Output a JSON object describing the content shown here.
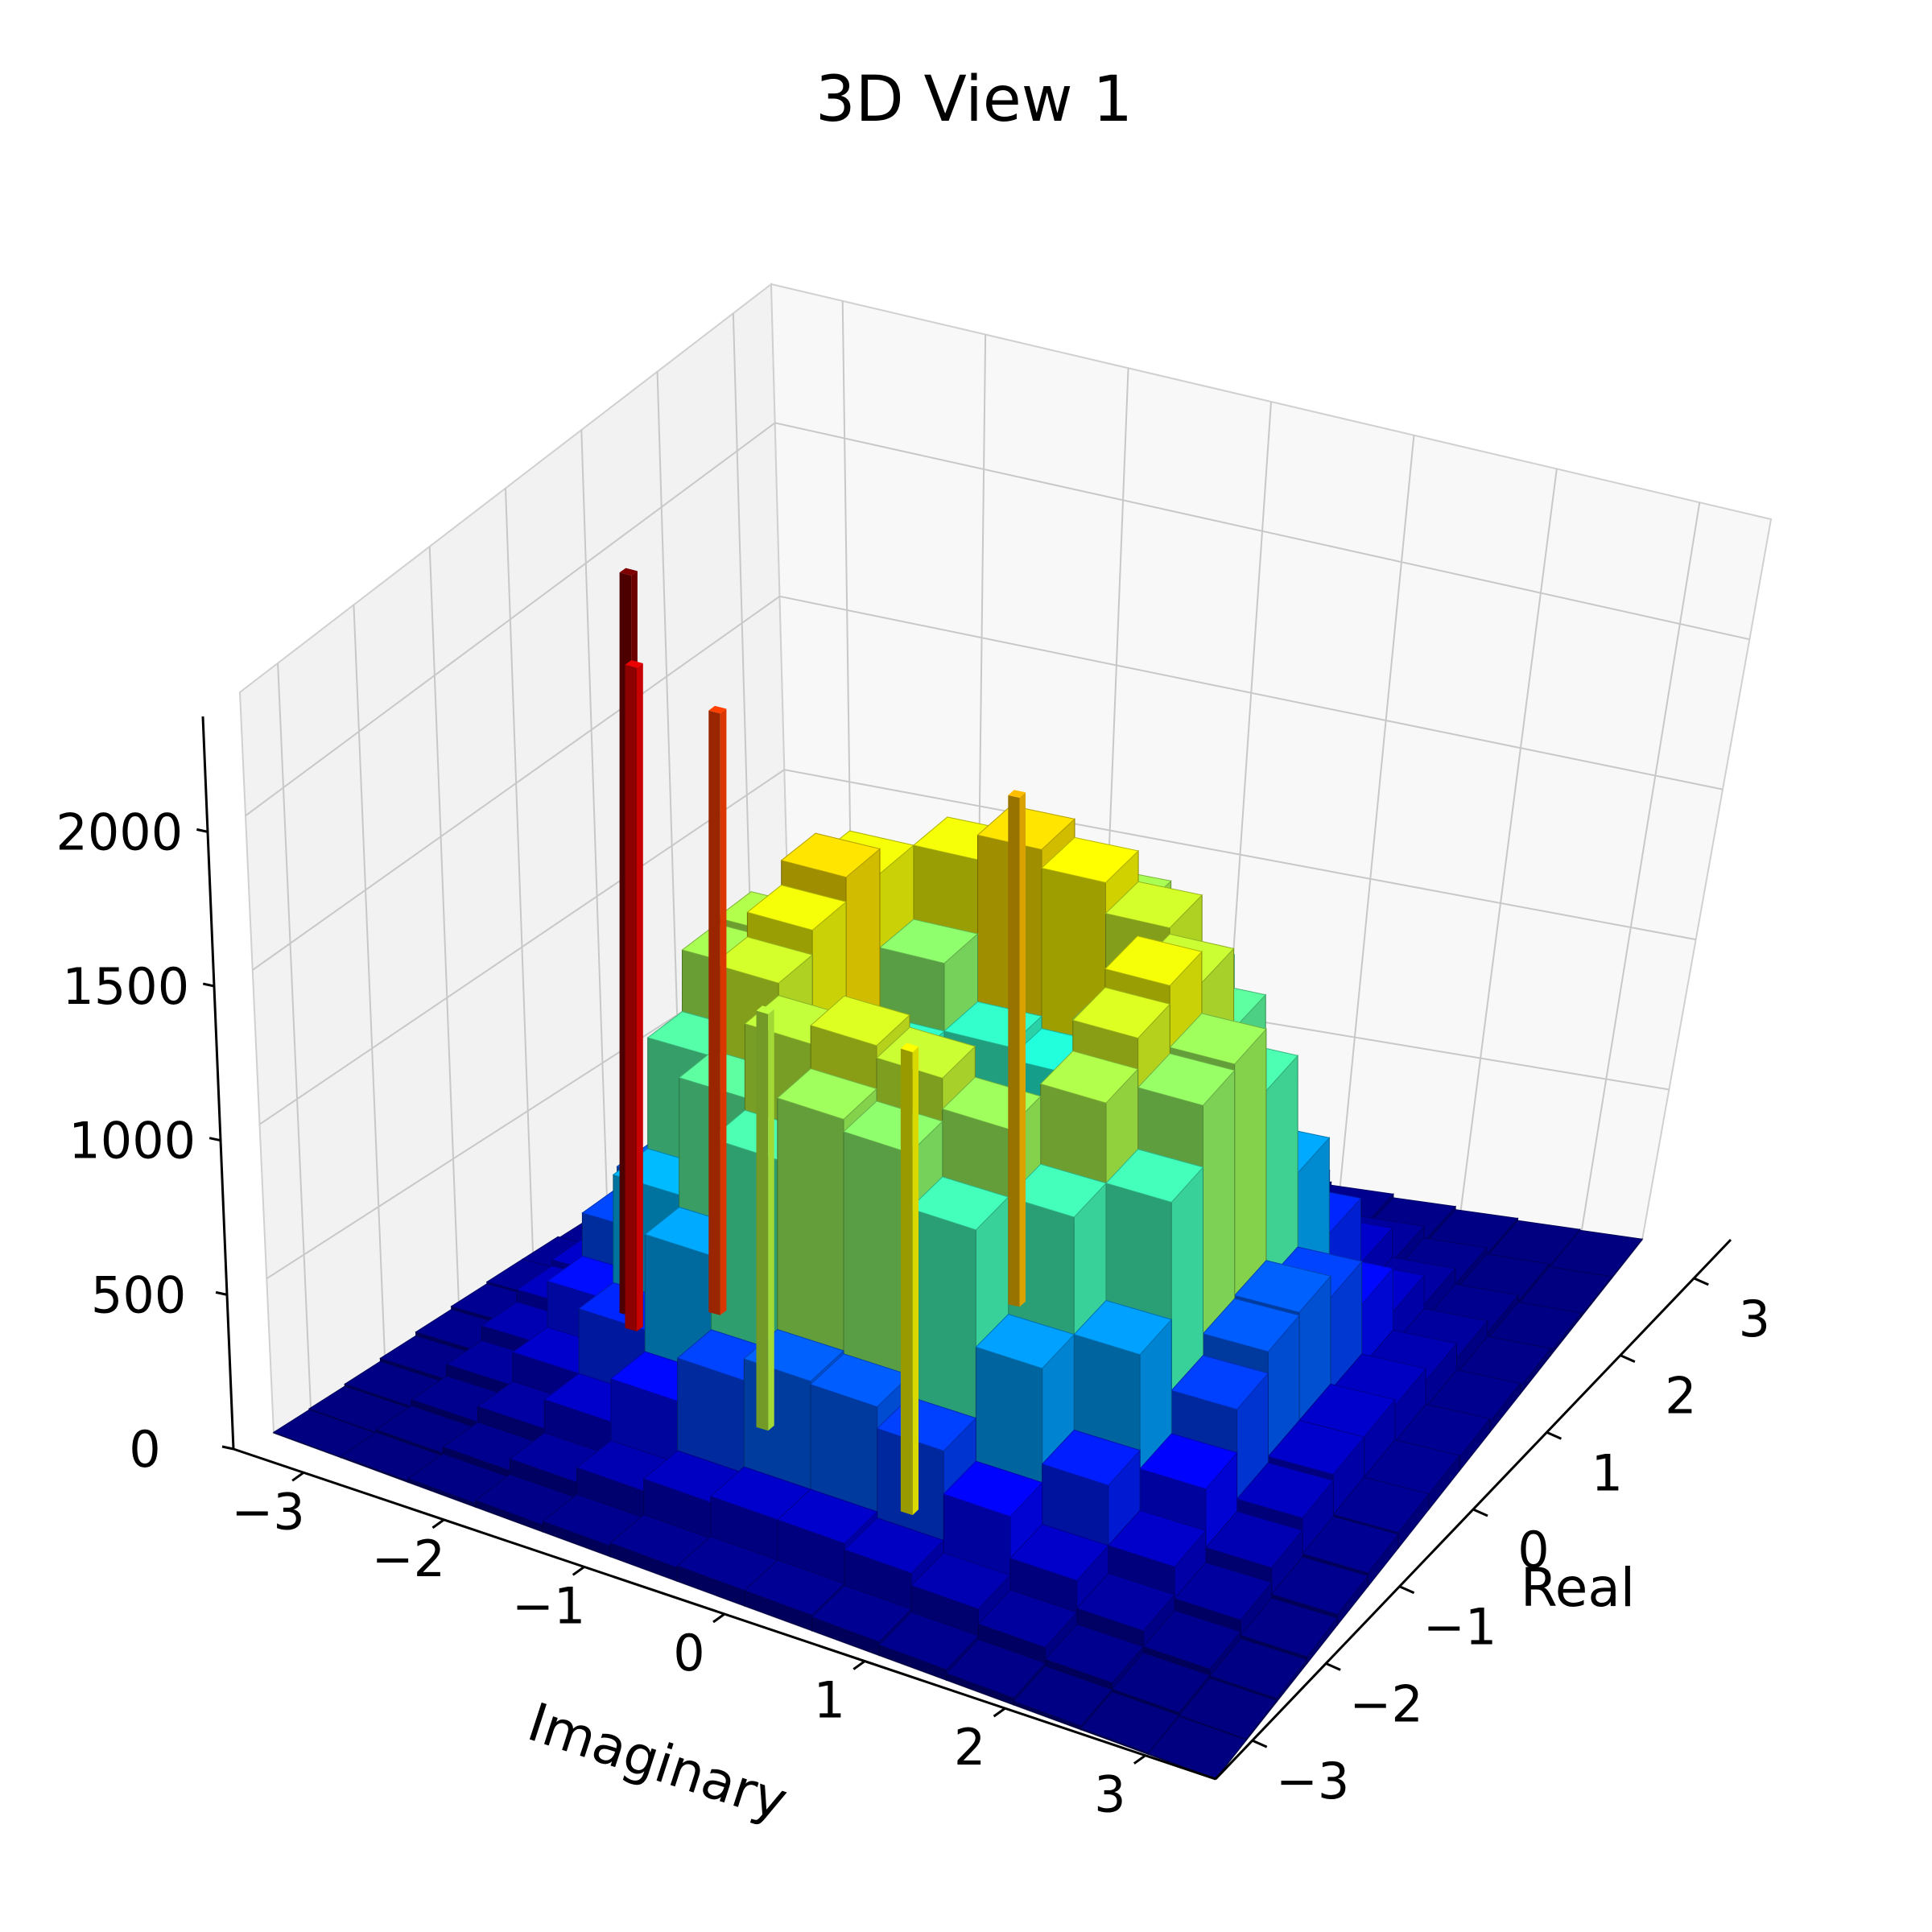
{
  "chart_data": {
    "type": "3d-bar-histogram",
    "title": "3D View 1",
    "xlabel": "Imaginary",
    "ylabel": "Real",
    "zlabel": "",
    "x_range": [
      -3.5,
      3.5
    ],
    "y_range": [
      -3.5,
      3.5
    ],
    "z_range": [
      0,
      2400
    ],
    "x_ticks": [
      -3,
      -2,
      -1,
      0,
      1,
      2,
      3
    ],
    "x_tick_labels": [
      "−3",
      "−2",
      "−1",
      "0",
      "1",
      "2",
      "3"
    ],
    "y_ticks": [
      -3,
      -2,
      -1,
      0,
      1,
      2,
      3
    ],
    "y_tick_labels": [
      "−3",
      "−2",
      "−1",
      "0",
      "1",
      "2",
      "3"
    ],
    "z_ticks": [
      0,
      500,
      1000,
      1500,
      2000
    ],
    "z_tick_labels": [
      "0",
      "500",
      "1000",
      "1500",
      "2000"
    ],
    "grid": true,
    "colormap": [
      "#00007f",
      "#0000ff",
      "#007fff",
      "#00ffff",
      "#7fff7f",
      "#ffff00",
      "#ff7f00",
      "#ff0000",
      "#7f0000"
    ],
    "bin_edges": [
      -3.5,
      -3.0,
      -2.5,
      -2.0,
      -1.5,
      -1.0,
      -0.5,
      0.0,
      0.5,
      1.0,
      1.5,
      2.0,
      2.5,
      3.0,
      3.5
    ],
    "peaks_approx": [
      {
        "imaginary": 0.0,
        "real": -1.5,
        "count": 1800
      },
      {
        "imaginary": -1.5,
        "real": 0.0,
        "count": 1400
      },
      {
        "imaginary": 1.5,
        "real": 0.0,
        "count": 1300
      },
      {
        "imaginary": 0.0,
        "real": 1.5,
        "count": 1450
      }
    ],
    "counts": [
      [
        2,
        5,
        12,
        22,
        34,
        44,
        50,
        50,
        44,
        34,
        22,
        12,
        5,
        2
      ],
      [
        5,
        14,
        34,
        72,
        120,
        160,
        180,
        180,
        160,
        120,
        72,
        34,
        14,
        5
      ],
      [
        12,
        34,
        85,
        180,
        330,
        470,
        540,
        540,
        470,
        330,
        180,
        85,
        34,
        12
      ],
      [
        22,
        72,
        180,
        400,
        760,
        1120,
        1320,
        1300,
        1100,
        740,
        390,
        180,
        72,
        22
      ],
      [
        34,
        120,
        330,
        760,
        1200,
        1480,
        1560,
        1500,
        1400,
        1120,
        700,
        320,
        120,
        34
      ],
      [
        44,
        160,
        470,
        1120,
        1480,
        1240,
        1020,
        980,
        1160,
        1380,
        1080,
        460,
        160,
        44
      ],
      [
        50,
        180,
        540,
        1320,
        1560,
        1020,
        380,
        360,
        940,
        1480,
        1280,
        530,
        180,
        50
      ],
      [
        50,
        180,
        540,
        1300,
        1480,
        980,
        360,
        340,
        920,
        1420,
        1260,
        520,
        180,
        50
      ],
      [
        44,
        160,
        470,
        1100,
        1400,
        1140,
        920,
        900,
        1080,
        1320,
        1060,
        450,
        160,
        44
      ],
      [
        34,
        120,
        330,
        740,
        1120,
        1360,
        1420,
        1380,
        1280,
        1060,
        680,
        310,
        120,
        34
      ],
      [
        22,
        72,
        180,
        390,
        700,
        1080,
        1280,
        1240,
        1060,
        680,
        370,
        175,
        72,
        22
      ],
      [
        12,
        34,
        85,
        180,
        320,
        460,
        530,
        520,
        450,
        310,
        175,
        85,
        34,
        12
      ],
      [
        5,
        14,
        34,
        72,
        120,
        160,
        180,
        180,
        160,
        120,
        72,
        34,
        14,
        5
      ],
      [
        2,
        5,
        12,
        22,
        34,
        44,
        50,
        50,
        44,
        34,
        22,
        12,
        5,
        2
      ]
    ],
    "spikes": [
      {
        "imaginary": 0.15,
        "real": -2.6,
        "count": 2400
      },
      {
        "imaginary": 0.35,
        "real": -2.45,
        "count": 2150
      },
      {
        "imaginary": -0.2,
        "real": -2.1,
        "count": 1950
      },
      {
        "imaginary": -1.3,
        "real": -0.35,
        "count": 1650
      },
      {
        "imaginary": 1.7,
        "real": 0.35,
        "count": 1500
      },
      {
        "imaginary": 1.2,
        "real": -1.0,
        "count": 1350
      }
    ]
  }
}
